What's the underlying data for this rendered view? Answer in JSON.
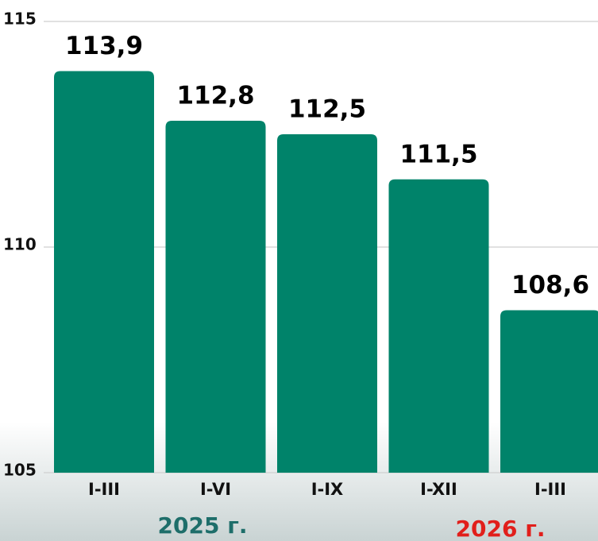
{
  "chart_data": {
    "type": "bar",
    "categories": [
      "I-III",
      "I-VI",
      "I-IX",
      "I-XII",
      "I-III"
    ],
    "values": [
      113.9,
      112.8,
      112.5,
      111.5,
      108.6
    ],
    "value_labels": [
      "113,9",
      "112,8",
      "112,5",
      "111,5",
      "108,6"
    ],
    "color": "#00836a",
    "ylim": [
      105,
      115
    ],
    "yticks": [
      105,
      110,
      115
    ],
    "grid": true,
    "groups": [
      {
        "label": "2025 г.",
        "color": "#1e6e6a"
      },
      {
        "label": "2026 г.",
        "color": "#e11f1b"
      }
    ]
  }
}
